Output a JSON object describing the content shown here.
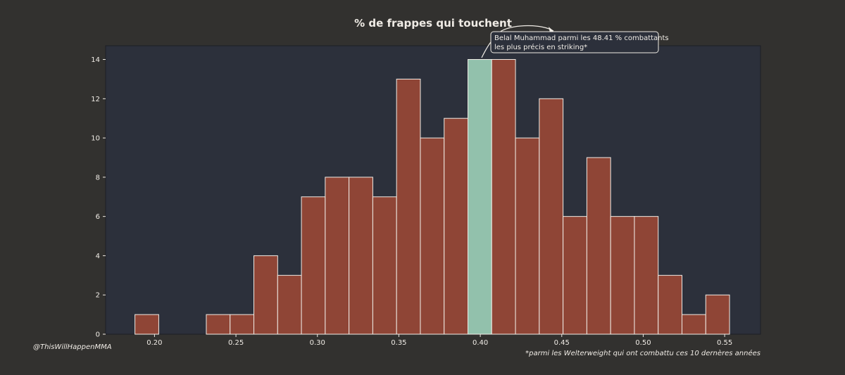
{
  "chart_data": {
    "type": "bar",
    "title": "% de frappes qui touchent",
    "xlabel": "",
    "ylabel": "",
    "xlim": [
      0.17,
      0.572
    ],
    "ylim": [
      0,
      14.7
    ],
    "bin_width": 0.0146,
    "bins": [
      {
        "x0": 0.188,
        "value": 1
      },
      {
        "x0": 0.2026,
        "value": 0
      },
      {
        "x0": 0.2172,
        "value": 0
      },
      {
        "x0": 0.2318,
        "value": 1
      },
      {
        "x0": 0.2464,
        "value": 1
      },
      {
        "x0": 0.261,
        "value": 4
      },
      {
        "x0": 0.2756,
        "value": 3
      },
      {
        "x0": 0.2902,
        "value": 7
      },
      {
        "x0": 0.3048,
        "value": 8
      },
      {
        "x0": 0.3194,
        "value": 8
      },
      {
        "x0": 0.334,
        "value": 7
      },
      {
        "x0": 0.3486,
        "value": 13
      },
      {
        "x0": 0.3632,
        "value": 10
      },
      {
        "x0": 0.3778,
        "value": 11
      },
      {
        "x0": 0.3924,
        "value": 14,
        "highlight": true
      },
      {
        "x0": 0.407,
        "value": 14
      },
      {
        "x0": 0.4216,
        "value": 10
      },
      {
        "x0": 0.4362,
        "value": 12
      },
      {
        "x0": 0.4508,
        "value": 6
      },
      {
        "x0": 0.4654,
        "value": 9
      },
      {
        "x0": 0.48,
        "value": 6
      },
      {
        "x0": 0.4946,
        "value": 6
      },
      {
        "x0": 0.5092,
        "value": 3
      },
      {
        "x0": 0.5238,
        "value": 1
      },
      {
        "x0": 0.5384,
        "value": 2
      }
    ],
    "x_ticks": [
      0.2,
      0.25,
      0.3,
      0.35,
      0.4,
      0.45,
      0.5,
      0.55
    ],
    "x_tick_labels": [
      "0.20",
      "0.25",
      "0.30",
      "0.35",
      "0.40",
      "0.45",
      "0.50",
      "0.55"
    ],
    "y_ticks": [
      0,
      2,
      4,
      6,
      8,
      10,
      12,
      14
    ],
    "y_tick_labels": [
      "0",
      "2",
      "4",
      "6",
      "8",
      "10",
      "12",
      "14"
    ],
    "grid": false,
    "annotation": {
      "lines": [
        "Belal Muhammad parmi les 48.41 % combattants",
        "les plus précis en striking*"
      ]
    },
    "colors": {
      "figure_bg": "#32312f",
      "plot_bg": "#2c303b",
      "bar": "#8f4536",
      "highlight_bar": "#92c1ac",
      "bar_edge": "#f0ece6",
      "text": "#f0ece6"
    }
  },
  "credit": "@ThisWillHappenMMA",
  "footnote": "*parmi les Welterweight qui ont combattu ces 10 dernères années"
}
